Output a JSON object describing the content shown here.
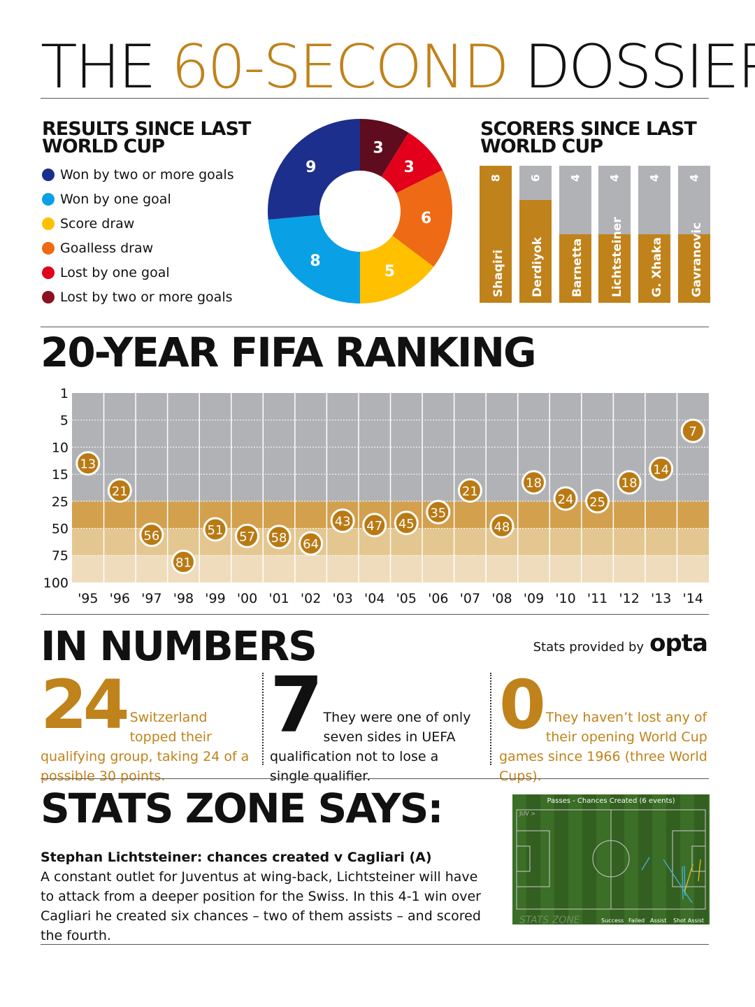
{
  "title": {
    "part1": "THE",
    "part2": "60-SECOND",
    "part3": "DOSSIER"
  },
  "results": {
    "heading": "RESULTS SINCE LAST WORLD CUP",
    "items": [
      {
        "label": "Won by two or more goals",
        "color": "#1c2f8c",
        "value": 9
      },
      {
        "label": "Won by one goal",
        "color": "#0aa0e6",
        "value": 8
      },
      {
        "label": "Score draw",
        "color": "#ffc000",
        "value": 5
      },
      {
        "label": "Goalless draw",
        "color": "#ee6a15",
        "value": 6
      },
      {
        "label": "Lost by one goal",
        "color": "#e2001a",
        "value": 3
      },
      {
        "label": "Lost by two or more goals",
        "color": "#8b1020",
        "value": 3
      }
    ]
  },
  "scorers": {
    "heading": "SCORERS SINCE LAST WORLD CUP",
    "max": 8,
    "items": [
      {
        "name": "Shaqiri",
        "goals": 8
      },
      {
        "name": "Derdiyok",
        "goals": 6
      },
      {
        "name": "Barnetta",
        "goals": 4
      },
      {
        "name": "Lichtsteiner",
        "goals": 4
      },
      {
        "name": "G. Xhaka",
        "goals": 4
      },
      {
        "name": "Gavranovic",
        "goals": 4
      }
    ]
  },
  "chart_data": {
    "type": "scatter",
    "title": "20-YEAR FIFA RANKING",
    "y_ticks": [
      1,
      5,
      10,
      15,
      25,
      50,
      75,
      100
    ],
    "categories": [
      "'95",
      "'96",
      "'97",
      "'98",
      "'99",
      "'00",
      "'01",
      "'02",
      "'03",
      "'04",
      "'05",
      "'06",
      "'07",
      "'08",
      "'09",
      "'10",
      "'11",
      "'12",
      "'13",
      "'14"
    ],
    "values": [
      13,
      21,
      56,
      81,
      51,
      57,
      58,
      64,
      43,
      47,
      45,
      35,
      21,
      48,
      18,
      24,
      25,
      18,
      14,
      7
    ],
    "ylim": [
      1,
      100
    ],
    "y_inverted": true
  },
  "numbers": {
    "heading": "IN NUMBERS",
    "provided_by": "Stats provided by",
    "brand": "opta",
    "items": [
      {
        "big": "24",
        "text": "Switzerland topped their qualifying group, taking 24 of a possible 30 points."
      },
      {
        "big": "7",
        "text": "They were one of only seven sides in UEFA qualification not to lose a single qualifier."
      },
      {
        "big": "0",
        "text": "They haven’t lost any of their opening World Cup games since 1966 (three World Cups)."
      }
    ]
  },
  "statszone": {
    "heading": "STATS ZONE SAYS:",
    "subheading": "Stephan Lichtsteiner: chances created v Cagliari (A)",
    "body": "A constant outlet for Juventus at wing-back, Lichtsteiner will have to attack from a deeper position for the Swiss. In this 4-1 win over Cagliari he created six chances – two of them assists – and scored the fourth.",
    "pitch": {
      "title": "Passes - Chances Created (6 events)",
      "team": "JUV >",
      "watermark": "STATS ZONE",
      "legend": [
        "Success",
        "Failed",
        "Assist",
        "Shot Assist"
      ]
    }
  }
}
